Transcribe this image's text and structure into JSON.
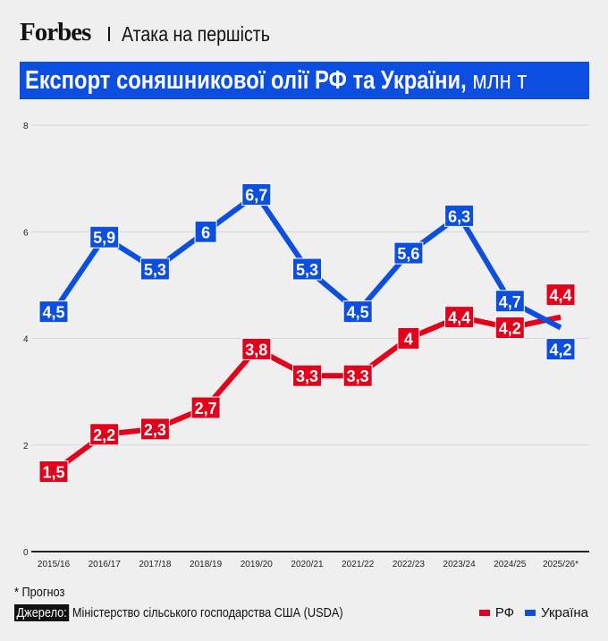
{
  "header": {
    "brand": "Forbes",
    "subtitle": "Атака на першість"
  },
  "footer": {
    "note": "* Прогноз",
    "source_label": "Джерело:",
    "source": "Міністерство сільського господарства США (USDA)"
  },
  "colors": {
    "rf": "#e3001b",
    "ua": "#0b4ee0"
  },
  "chart_data": {
    "type": "line",
    "title": "Експорт соняшникової олії РФ та України,",
    "unit": "млн т",
    "categories": [
      "2015/16",
      "2016/17",
      "2017/18",
      "2018/19",
      "2019/20",
      "2020/21",
      "2021/22",
      "2022/23",
      "2023/24",
      "2024/25",
      "2025/26*"
    ],
    "ylim": [
      0,
      8
    ],
    "yticks": [
      0,
      2,
      4,
      6,
      8
    ],
    "grid": true,
    "legend_position": "bottom-right",
    "series": [
      {
        "name": "РФ",
        "values": [
          1.5,
          2.2,
          2.3,
          2.7,
          3.8,
          3.3,
          3.3,
          4,
          4.4,
          4.2,
          4.4
        ]
      },
      {
        "name": "Україна",
        "values": [
          4.5,
          5.9,
          5.3,
          6,
          6.7,
          5.3,
          4.5,
          5.6,
          6.3,
          4.7,
          4.2
        ]
      }
    ]
  }
}
